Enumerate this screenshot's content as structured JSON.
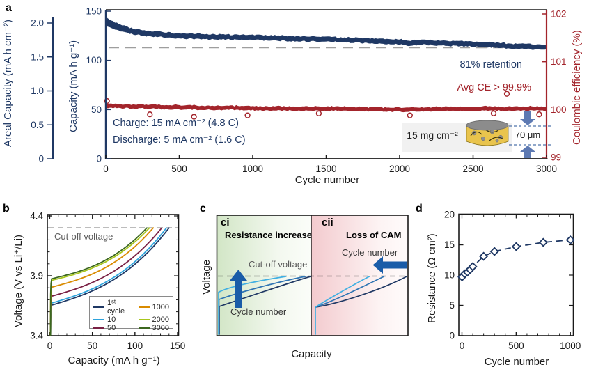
{
  "figure": {
    "panels": {
      "a": {
        "label": "a",
        "areal_axis_title": "Areal Capacity (mA h cm⁻²)",
        "capacity_axis_title": "Capacity (mA h g⁻¹)",
        "ce_axis_title": "Coulombic efficiency (%)",
        "x_axis_title": "Cycle number",
        "charge_note": "Charge: 15 mA cm⁻² (4.8 C)",
        "discharge_note": "Discharge: 5 mA cm⁻² (1.6 C)",
        "retention_note": "81% retention",
        "avg_ce_note": "Avg CE > 99.9%",
        "loading_note": "15 mg cm⁻²",
        "thickness_note": "70 μm"
      },
      "b": {
        "label": "b",
        "y_axis_title": "Voltage (V vs Li⁺/Li)",
        "x_axis_title": "Capacity (mA h g⁻¹)",
        "cutoff_label": "Cut-off voltage"
      },
      "c": {
        "label": "c",
        "y_axis_title": "Voltage",
        "x_axis_title": "Capacity",
        "ci_label": "ci",
        "ci_title": "Resistance increase",
        "cutoff_label": "Cut-off voltage",
        "ci_arrow_label": "Cycle number",
        "cii_label": "cii",
        "cii_title": "Loss of CAM",
        "cii_arrow_label": "Cycle number"
      },
      "d": {
        "label": "d",
        "y_axis_title": "Resistance (Ω cm²)",
        "x_axis_title": "Cycle number"
      }
    }
  },
  "chart_data": [
    {
      "id": "a",
      "type": "scatter",
      "xlabel": "Cycle number",
      "xlim": [
        0,
        3000
      ],
      "x_ticks": [
        "0",
        "500",
        "1000",
        "1500",
        "2000",
        "2500",
        "3000"
      ],
      "axes": {
        "capacity": {
          "title": "Capacity (mA h g⁻¹)",
          "lim": [
            0,
            150
          ],
          "ticks": [
            "0",
            "50",
            "100",
            "150"
          ],
          "color": "#1f3864"
        },
        "areal_capacity": {
          "title": "Areal Capacity (mA h cm⁻²)",
          "lim": [
            0,
            2.1
          ],
          "ticks": [
            "0",
            "0.5",
            "1.0",
            "1.5",
            "2.0"
          ],
          "color": "#1f3864"
        },
        "coulombic_efficiency": {
          "title": "Coulombic efficiency (%)",
          "lim": [
            99,
            102
          ],
          "ticks": [
            "99",
            "100",
            "101",
            "102"
          ],
          "color": "#a3242b"
        }
      },
      "series": [
        {
          "name": "discharge-capacity",
          "axis": "capacity",
          "color": "#1f3864",
          "x": [
            0,
            20,
            50,
            100,
            150,
            200,
            300,
            400,
            500,
            700,
            900,
            1100,
            1300,
            1500,
            1700,
            1900,
            2000,
            2060,
            2150,
            2300,
            2500,
            2700,
            2850,
            3000
          ],
          "y": [
            140,
            138,
            136,
            133,
            130.5,
            129,
            127,
            126,
            125,
            124,
            123.5,
            123,
            122,
            121.5,
            120.5,
            119.5,
            119,
            117.5,
            118.5,
            117.5,
            116.5,
            115,
            114,
            113.5
          ]
        },
        {
          "name": "coulombic-efficiency",
          "axis": "coulombic_efficiency",
          "color": "#a3242b",
          "x": [
            0,
            500,
            1000,
            1500,
            2000,
            2500,
            3000
          ],
          "y": [
            100.08,
            100.05,
            100.03,
            100.02,
            100.0,
            100.02,
            100.02
          ],
          "outliers": [
            [
              8,
              100.18
            ],
            [
              300,
              99.9
            ],
            [
              600,
              99.85
            ],
            [
              965,
              99.88
            ],
            [
              1450,
              99.92
            ],
            [
              2070,
              99.88
            ],
            [
              2640,
              99.92
            ],
            [
              2730,
              100.33
            ],
            [
              2950,
              99.9
            ]
          ]
        }
      ],
      "retention_line": {
        "y": 113,
        "label": "81% retention",
        "color": "#9e9e9e"
      },
      "notes": [
        "Charge: 15 mA cm⁻² (4.8 C)",
        "Discharge: 5 mA cm⁻² (1.6 C)",
        "Avg CE > 99.9%",
        "15 mg cm⁻²",
        "70 μm"
      ]
    },
    {
      "id": "b",
      "type": "line",
      "xlabel": "Capacity (mA h g⁻¹)",
      "ylabel": "Voltage (V vs Li⁺/Li)",
      "xlim": [
        0,
        150
      ],
      "ylim": [
        3.4,
        4.4
      ],
      "x_ticks": [
        "0",
        "50",
        "100",
        "150"
      ],
      "y_ticks": [
        "3.4",
        "3.9",
        "4.4"
      ],
      "cutoff_voltage": 4.3,
      "series": [
        {
          "label": "1ˢᵗ cycle",
          "color": "#1f3864",
          "start_v": 3.655,
          "end_capacity": 140
        },
        {
          "label": "10",
          "color": "#2ea3dc",
          "start_v": 3.672,
          "end_capacity": 137
        },
        {
          "label": "50",
          "color": "#7a2145",
          "start_v": 3.73,
          "end_capacity": 131.5
        },
        {
          "label": "1000",
          "color": "#d98b00",
          "start_v": 3.805,
          "end_capacity": 121.5
        },
        {
          "label": "2000",
          "color": "#a8c61d",
          "start_v": 3.862,
          "end_capacity": 117
        },
        {
          "label": "3000",
          "color": "#3c681f",
          "start_v": 3.875,
          "end_capacity": 114
        }
      ]
    },
    {
      "id": "c",
      "type": "diagram",
      "xlabel": "Capacity",
      "ylabel": "Voltage",
      "sub_panels": [
        {
          "label": "ci",
          "title": "Resistance increase",
          "annotation": "Cycle number",
          "cutoff_label": "Cut-off voltage",
          "trend": "charge curves shift upward with cycling"
        },
        {
          "label": "cii",
          "title": "Loss of CAM",
          "annotation": "Cycle number",
          "trend": "capacity shrinks leftward with cycling"
        }
      ]
    },
    {
      "id": "d",
      "type": "scatter",
      "xlabel": "Cycle number",
      "ylabel": "Resistance (Ω cm²)",
      "xlim": [
        0,
        1000
      ],
      "ylim": [
        0,
        20
      ],
      "x_ticks": [
        "0",
        "500",
        "1000"
      ],
      "y_ticks": [
        "0",
        "5",
        "10",
        "15",
        "20"
      ],
      "marker": "open-diamond",
      "color": "#1f3864",
      "x": [
        1,
        25,
        50,
        75,
        100,
        200,
        300,
        500,
        750,
        1000
      ],
      "y": [
        9.7,
        10.2,
        10.5,
        10.9,
        11.4,
        13.1,
        13.9,
        14.7,
        15.4,
        15.8
      ]
    }
  ]
}
